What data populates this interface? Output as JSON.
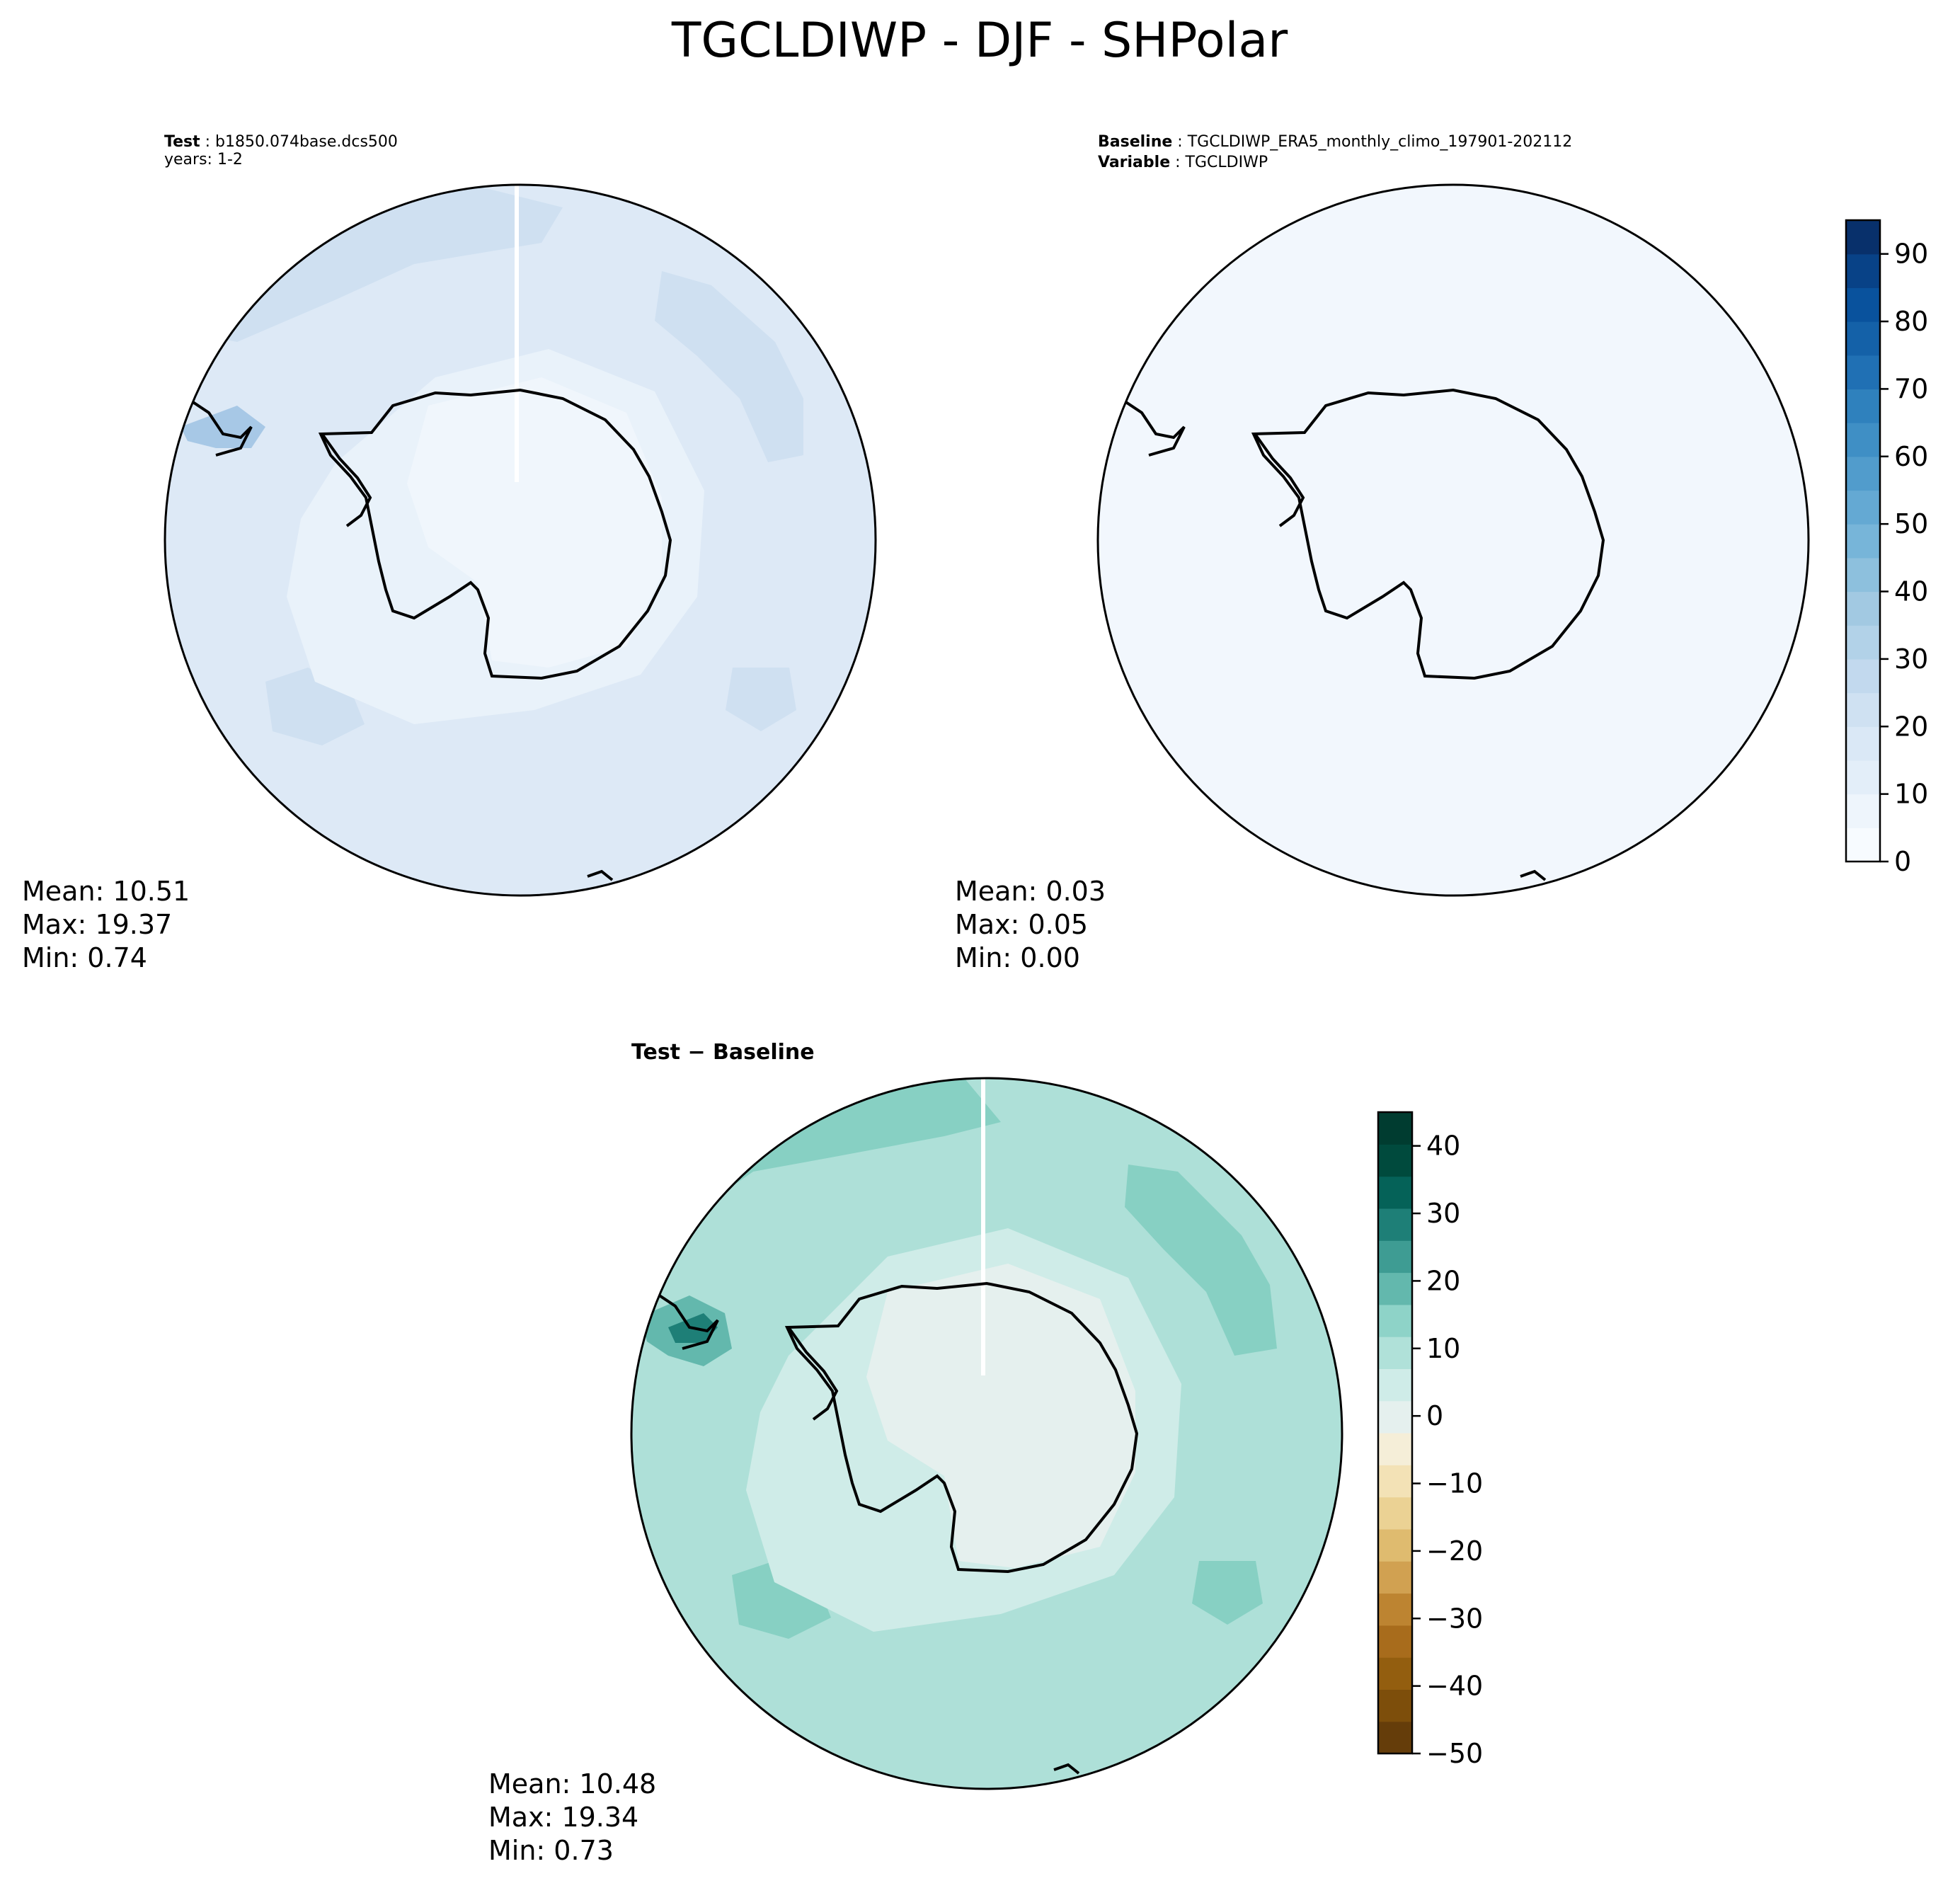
{
  "figure": {
    "title": "TGCLDIWP - DJF - SHPolar"
  },
  "panels": {
    "test": {
      "label_key": "Test",
      "label_value": "b1850.074base.dcs500",
      "line2": "years: 1-2",
      "stats": {
        "mean": "Mean: 10.51",
        "max": "Max: 19.37",
        "min": "Min:  0.74"
      }
    },
    "baseline": {
      "label_key": "Baseline",
      "label_value": "TGCLDIWP_ERA5_monthly_climo_197901-202112",
      "line2_key": "Variable",
      "line2_value": "TGCLDIWP",
      "stats": {
        "mean": "Mean:  0.03",
        "max": "Max:  0.05",
        "min": "Min:  0.00"
      }
    },
    "diff": {
      "title": "Test − Baseline",
      "stats": {
        "mean": "Mean: 10.48",
        "max": "Max: 19.34",
        "min": "Min:  0.73"
      }
    }
  },
  "colors": {
    "blues": [
      "#f7fbff",
      "#eef5fc",
      "#e3eef9",
      "#dae8f6",
      "#cfe1f2",
      "#c2d9ee",
      "#b2d2e8",
      "#a2c9e2",
      "#8dc0dd",
      "#77b5d9",
      "#64a9d3",
      "#519ccc",
      "#3f8fc5",
      "#2f81bd",
      "#2070b4",
      "#1461a8",
      "#09529d",
      "#084287",
      "#08306b"
    ],
    "brbg": [
      "#653d0a",
      "#7d4e0b",
      "#935e0f",
      "#a86c1c",
      "#bd8431",
      "#d1a151",
      "#dfbb6f",
      "#ebd294",
      "#f3e2b6",
      "#f5eed8",
      "#e5f0ee",
      "#cfece8",
      "#b0e1d9",
      "#8ed3c8",
      "#63b8ad",
      "#3e9c93",
      "#1e7f77",
      "#056258",
      "#004a3d",
      "#003c30"
    ]
  },
  "chart_data": [
    {
      "type": "heatmap",
      "panel": "test",
      "projection": "South Polar Stereographic",
      "colorscale": "Blues",
      "levels_range": [
        0,
        95
      ],
      "level_step": 5,
      "field_range": [
        0.74,
        19.37
      ],
      "mean": 10.51,
      "max": 19.37,
      "min": 0.74
    },
    {
      "type": "heatmap",
      "panel": "baseline",
      "projection": "South Polar Stereographic",
      "colorscale": "Blues",
      "levels_range": [
        0,
        95
      ],
      "level_step": 5,
      "mean": 0.03,
      "max": 0.05,
      "min": 0.0,
      "colorbar": {
        "min": 0,
        "max": 95,
        "ticks": [
          "0",
          "10",
          "20",
          "30",
          "40",
          "50",
          "60",
          "70",
          "80",
          "90"
        ]
      }
    },
    {
      "type": "heatmap",
      "panel": "diff",
      "projection": "South Polar Stereographic",
      "colorscale": "BrBG",
      "levels_range": [
        -50,
        45
      ],
      "level_step": 5,
      "mean": 10.48,
      "max": 19.34,
      "min": 0.73,
      "colorbar": {
        "min": -50,
        "max": 45,
        "ticks": [
          "−50",
          "−40",
          "−30",
          "−20",
          "−10",
          "0",
          "10",
          "20",
          "30",
          "40"
        ]
      }
    }
  ]
}
